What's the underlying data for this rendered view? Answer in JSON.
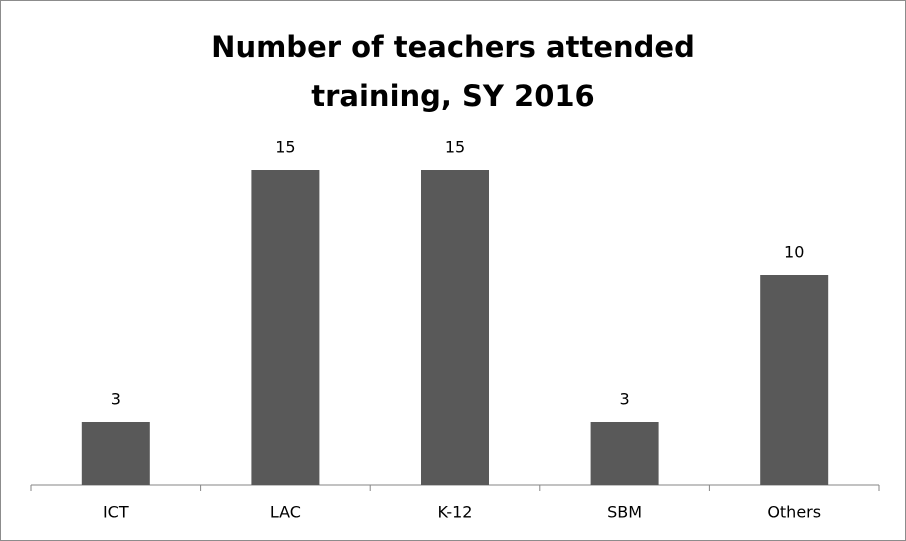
{
  "chart_data": {
    "type": "bar",
    "title": "Number of teachers attended training, SY 2016",
    "categories": [
      "ICT",
      "LAC",
      "K-12",
      "SBM",
      "Others"
    ],
    "values": [
      3,
      15,
      15,
      3,
      10
    ],
    "color": "#595959"
  }
}
